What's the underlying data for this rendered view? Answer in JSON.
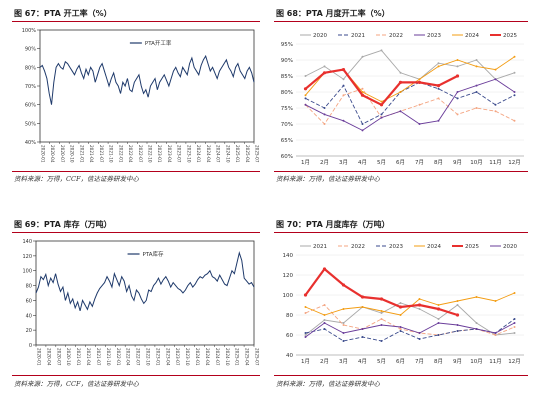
{
  "figures": [
    {
      "id": "fig67",
      "title": "图 67：PTA 开工率（%）",
      "source": "资料来源：万得，CCF，信达证券研发中心"
    },
    {
      "id": "fig68",
      "title": "图 68：PTA 月度开工率（%）",
      "source": "资料来源：万得，信达证券研发中心"
    },
    {
      "id": "fig69",
      "title": "图 69：PTA 库存（万吨）",
      "source": "资料来源：万得，CCF，信达证券研发中心"
    },
    {
      "id": "fig70",
      "title": "图 70：PTA 月度库存（万吨）",
      "source": "资料来源：万得，信达证券研发中心"
    }
  ],
  "colors": {
    "accent_rule": "#b3001b",
    "series_main": "#1f3a6b"
  },
  "chart_data": [
    {
      "type": "line",
      "title": "图 67：PTA 开工率（%）",
      "ylim": [
        40,
        100
      ],
      "yticks": [
        "40%",
        "50%",
        "60%",
        "70%",
        "80%",
        "90%",
        "100%"
      ],
      "tick_labels": [
        "2020-01",
        "2020-04",
        "2020-07",
        "2020-10",
        "2021-01",
        "2021-04",
        "2021-07",
        "2021-10",
        "2022-01",
        "2022-04",
        "2022-07",
        "2022-10",
        "2023-01",
        "2023-04",
        "2023-07",
        "2023-10",
        "2024-01",
        "2024-04",
        "2024-07",
        "2024-10",
        "2025-01",
        "2025-04",
        "2025-07"
      ],
      "legend": "PTA开工率",
      "legend_position": "top-center",
      "series": [
        {
          "name": "PTA开工率",
          "color": "#1f3a6b",
          "values": [
            80,
            81,
            78,
            74,
            66,
            60,
            72,
            80,
            82,
            80,
            79,
            83,
            82,
            80,
            78,
            76,
            79,
            81,
            77,
            74,
            79,
            76,
            80,
            78,
            72,
            76,
            80,
            82,
            78,
            74,
            70,
            74,
            77,
            72,
            70,
            66,
            72,
            70,
            74,
            68,
            67,
            72,
            74,
            76,
            70,
            66,
            68,
            64,
            70,
            72,
            74,
            68,
            72,
            74,
            76,
            73,
            70,
            74,
            78,
            80,
            77,
            75,
            80,
            78,
            76,
            82,
            85,
            80,
            78,
            76,
            81,
            84,
            86,
            82,
            78,
            80,
            77,
            74,
            78,
            80,
            82,
            84,
            80,
            78,
            75,
            80,
            82,
            78,
            76,
            74,
            78,
            80,
            77,
            72
          ]
        }
      ]
    },
    {
      "type": "line",
      "title": "图 68：PTA 月度开工率（%）",
      "ylim": [
        60,
        95
      ],
      "yticks": [
        "60%",
        "65%",
        "70%",
        "75%",
        "80%",
        "85%",
        "90%",
        "95%"
      ],
      "categories": [
        "1月",
        "2月",
        "3月",
        "4月",
        "5月",
        "6月",
        "7月",
        "8月",
        "9月",
        "10月",
        "11月",
        "12月"
      ],
      "legend_position": "top",
      "series": [
        {
          "name": "2020",
          "color": "#a9a9a9",
          "dash": "",
          "values": [
            85,
            88,
            84,
            91,
            93,
            86,
            84,
            89,
            88,
            90,
            84,
            86
          ]
        },
        {
          "name": "2021",
          "color": "#3a4a8c",
          "dash": "4,2",
          "values": [
            78,
            75,
            82,
            70,
            73,
            80,
            83,
            81,
            78,
            80,
            76,
            79
          ]
        },
        {
          "name": "2022",
          "color": "#f4a582",
          "dash": "4,2",
          "values": [
            76,
            70,
            79,
            81,
            72,
            74,
            76,
            78,
            73,
            75,
            74,
            71
          ]
        },
        {
          "name": "2023",
          "color": "#6a3d9a",
          "dash": "",
          "values": [
            76,
            73,
            71,
            68,
            72,
            74,
            70,
            71,
            80,
            82,
            84,
            80
          ]
        },
        {
          "name": "2024",
          "color": "#f39c12",
          "dash": "",
          "values": [
            79,
            86,
            87,
            80,
            77,
            80,
            84,
            88,
            90,
            88,
            87,
            91
          ]
        },
        {
          "name": "2025",
          "color": "#e8302e",
          "dash": "",
          "values": [
            81,
            86,
            87,
            79,
            76,
            83,
            83,
            82,
            85,
            null,
            null,
            null
          ]
        }
      ]
    },
    {
      "type": "line",
      "title": "图 69：PTA 库存（万吨）",
      "ylim": [
        0,
        140
      ],
      "yticks": [
        "0",
        "20",
        "40",
        "60",
        "80",
        "100",
        "120",
        "140"
      ],
      "tick_labels": [
        "2020-01",
        "2020-04",
        "2020-07",
        "2020-10",
        "2021-01",
        "2021-04",
        "2021-07",
        "2021-10",
        "2022-01",
        "2022-04",
        "2022-07",
        "2022-10",
        "2023-01",
        "2023-04",
        "2023-07",
        "2023-10",
        "2024-01",
        "2024-04",
        "2024-07",
        "2024-10",
        "2025-01",
        "2025-04",
        "2025-07"
      ],
      "legend": "PTA库存",
      "legend_position": "top-center",
      "series": [
        {
          "name": "PTA库存",
          "color": "#1f3a6b",
          "values": [
            70,
            78,
            92,
            88,
            95,
            80,
            90,
            84,
            96,
            82,
            72,
            78,
            60,
            70,
            56,
            62,
            50,
            58,
            46,
            60,
            54,
            48,
            58,
            52,
            62,
            70,
            76,
            80,
            84,
            92,
            86,
            78,
            96,
            88,
            80,
            92,
            86,
            72,
            80,
            66,
            60,
            74,
            70,
            62,
            56,
            60,
            74,
            72,
            80,
            84,
            90,
            82,
            88,
            92,
            86,
            78,
            84,
            80,
            76,
            74,
            70,
            74,
            80,
            84,
            78,
            82,
            88,
            92,
            90,
            94,
            96,
            100,
            92,
            90,
            86,
            94,
            88,
            82,
            80,
            90,
            100,
            96,
            110,
            124,
            114,
            90,
            86,
            82,
            84,
            78
          ]
        }
      ]
    },
    {
      "type": "line",
      "title": "图 70：PTA 月度库存（万吨）",
      "ylim": [
        40,
        140
      ],
      "yticks": [
        "40",
        "60",
        "80",
        "100",
        "120",
        "140"
      ],
      "categories": [
        "1月",
        "2月",
        "3月",
        "4月",
        "5月",
        "6月",
        "7月",
        "8月",
        "9月",
        "10月",
        "11月",
        "12月"
      ],
      "legend_position": "top",
      "series": [
        {
          "name": "2021",
          "color": "#a9a9a9",
          "dash": "",
          "values": [
            60,
            75,
            72,
            88,
            82,
            92,
            86,
            76,
            90,
            72,
            60,
            62
          ]
        },
        {
          "name": "2022",
          "color": "#f4a582",
          "dash": "4,2",
          "values": [
            82,
            90,
            70,
            66,
            76,
            66,
            62,
            60,
            64,
            66,
            60,
            68
          ]
        },
        {
          "name": "2023",
          "color": "#3a4a8c",
          "dash": "4,2",
          "values": [
            62,
            66,
            54,
            58,
            54,
            64,
            56,
            60,
            64,
            66,
            62,
            76
          ]
        },
        {
          "name": "2024",
          "color": "#f39c12",
          "dash": "",
          "values": [
            88,
            80,
            86,
            88,
            84,
            80,
            96,
            90,
            94,
            98,
            94,
            102
          ]
        },
        {
          "name": "2025",
          "color": "#e8302e",
          "dash": "",
          "values": [
            100,
            126,
            110,
            98,
            96,
            88,
            90,
            86,
            80,
            null,
            null,
            null
          ]
        },
        {
          "name": "2020",
          "color": "#6a3d9a",
          "dash": "",
          "values": [
            58,
            72,
            62,
            66,
            70,
            68,
            62,
            72,
            70,
            66,
            62,
            72
          ]
        }
      ]
    }
  ]
}
